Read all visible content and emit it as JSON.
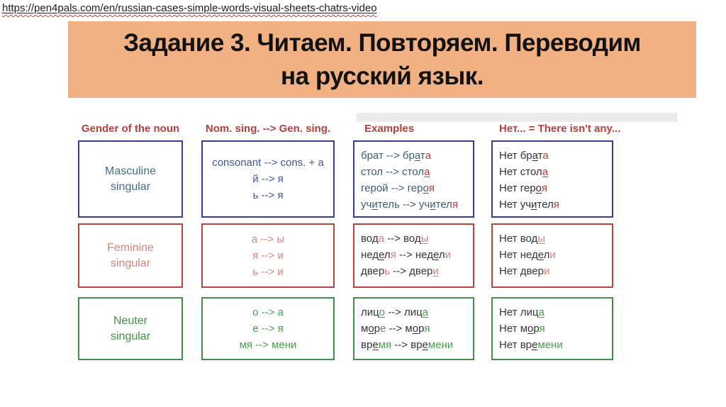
{
  "url": "https://pen4pals.com/en/russian-cases-simple-words-visual-sheets-chatrs-video",
  "title": {
    "line1": "Задание 3. Читаем. Повторяем. Переводим",
    "line2": "на русский язык."
  },
  "colors": {
    "banner_bg": "#f2b183",
    "header_red": "#b5403a",
    "masculine_border": "#3a3d8f",
    "feminine_border": "#b4453f",
    "neuter_border": "#3f9143",
    "masculine_ending": "#c23a33",
    "feminine_ending": "#d4837d",
    "neuter_ending": "#4a9d4e"
  },
  "table": {
    "headers": [
      "Gender of the noun",
      "Nom. sing. --> Gen. sing.",
      "Examples",
      "Нет... = There isn't any..."
    ],
    "rows": [
      {
        "label1": "Masculine",
        "label2": "singular",
        "rules": [
          "consonant --> cons. + a",
          "й --> я",
          "ь --> я"
        ],
        "examples": [
          [
            {
              "t": "брат --> бр",
              "s": "b"
            },
            {
              "t": "а",
              "s": "u"
            },
            {
              "t": "т",
              "s": "b"
            },
            {
              "t": "а",
              "s": "e"
            }
          ],
          [
            {
              "t": "стол --> стол",
              "s": "b"
            },
            {
              "t": "а",
              "s": "eu"
            }
          ],
          [
            {
              "t": "герой --> гер",
              "s": "b"
            },
            {
              "t": "о",
              "s": "u"
            },
            {
              "t": "я",
              "s": "e"
            }
          ],
          [
            {
              "t": "уч",
              "s": "b"
            },
            {
              "t": "и",
              "s": "u"
            },
            {
              "t": "тель --> уч",
              "s": "b"
            },
            {
              "t": "и",
              "s": "u"
            },
            {
              "t": "тел",
              "s": "b"
            },
            {
              "t": "я",
              "s": "e"
            }
          ]
        ],
        "negations": [
          [
            {
              "t": "Нет бр",
              "s": "b"
            },
            {
              "t": "а",
              "s": "u"
            },
            {
              "t": "т",
              "s": "b"
            },
            {
              "t": "а",
              "s": "e"
            }
          ],
          [
            {
              "t": "Нет стол",
              "s": "b"
            },
            {
              "t": "а",
              "s": "eu"
            }
          ],
          [
            {
              "t": "Нет гер",
              "s": "b"
            },
            {
              "t": "о",
              "s": "u"
            },
            {
              "t": "я",
              "s": "e"
            }
          ],
          [
            {
              "t": "Нет уч",
              "s": "b"
            },
            {
              "t": "и",
              "s": "u"
            },
            {
              "t": "тел",
              "s": "b"
            },
            {
              "t": "я",
              "s": "e"
            }
          ]
        ]
      },
      {
        "label1": "Feminine",
        "label2": "singular",
        "rules": [
          "а --> ы",
          "я --> и",
          "ь --> и"
        ],
        "examples": [
          [
            {
              "t": "вод",
              "s": "b"
            },
            {
              "t": "а",
              "s": "e"
            },
            {
              "t": " --> вод",
              "s": "b"
            },
            {
              "t": "ы",
              "s": "eu"
            }
          ],
          [
            {
              "t": "нед",
              "s": "b"
            },
            {
              "t": "е",
              "s": "u"
            },
            {
              "t": "л",
              "s": "b"
            },
            {
              "t": "я",
              "s": "e"
            },
            {
              "t": " --> нед",
              "s": "b"
            },
            {
              "t": "е",
              "s": "u"
            },
            {
              "t": "л",
              "s": "b"
            },
            {
              "t": "и",
              "s": "e"
            }
          ],
          [
            {
              "t": "двер",
              "s": "b"
            },
            {
              "t": "ь",
              "s": "e"
            },
            {
              "t": " --> двер",
              "s": "b"
            },
            {
              "t": "и",
              "s": "eu"
            }
          ]
        ],
        "negations": [
          [
            {
              "t": "Нет вод",
              "s": "b"
            },
            {
              "t": "ы",
              "s": "eu"
            }
          ],
          [
            {
              "t": "Нет нед",
              "s": "b"
            },
            {
              "t": "е",
              "s": "u"
            },
            {
              "t": "л",
              "s": "b"
            },
            {
              "t": "и",
              "s": "e"
            }
          ],
          [
            {
              "t": "Нет двер",
              "s": "b"
            },
            {
              "t": "и",
              "s": "e"
            }
          ]
        ]
      },
      {
        "label1": "Neuter",
        "label2": "singular",
        "rules": [
          "о --> а",
          "е --> я",
          "мя --> мени"
        ],
        "examples": [
          [
            {
              "t": "лиц",
              "s": "b"
            },
            {
              "t": "о",
              "s": "eu"
            },
            {
              "t": " --> лиц",
              "s": "b"
            },
            {
              "t": "а",
              "s": "eu"
            }
          ],
          [
            {
              "t": "м",
              "s": "b"
            },
            {
              "t": "о",
              "s": "u"
            },
            {
              "t": "р",
              "s": "b"
            },
            {
              "t": "е",
              "s": "e"
            },
            {
              "t": " --> м",
              "s": "b"
            },
            {
              "t": "о",
              "s": "u"
            },
            {
              "t": "р",
              "s": "b"
            },
            {
              "t": "я",
              "s": "e"
            }
          ],
          [
            {
              "t": "вр",
              "s": "b"
            },
            {
              "t": "е",
              "s": "u"
            },
            {
              "t": "мя",
              "s": "e"
            },
            {
              "t": " --> вр",
              "s": "b"
            },
            {
              "t": "е",
              "s": "u"
            },
            {
              "t": "мени",
              "s": "e"
            }
          ]
        ],
        "negations": [
          [
            {
              "t": "Нет лиц",
              "s": "b"
            },
            {
              "t": "а",
              "s": "eu"
            }
          ],
          [
            {
              "t": "Нет м",
              "s": "b"
            },
            {
              "t": "о",
              "s": "u"
            },
            {
              "t": "р",
              "s": "b"
            },
            {
              "t": "я",
              "s": "e"
            }
          ],
          [
            {
              "t": "Нет вр",
              "s": "b"
            },
            {
              "t": "е",
              "s": "u"
            },
            {
              "t": "мени",
              "s": "e"
            }
          ]
        ]
      }
    ]
  }
}
